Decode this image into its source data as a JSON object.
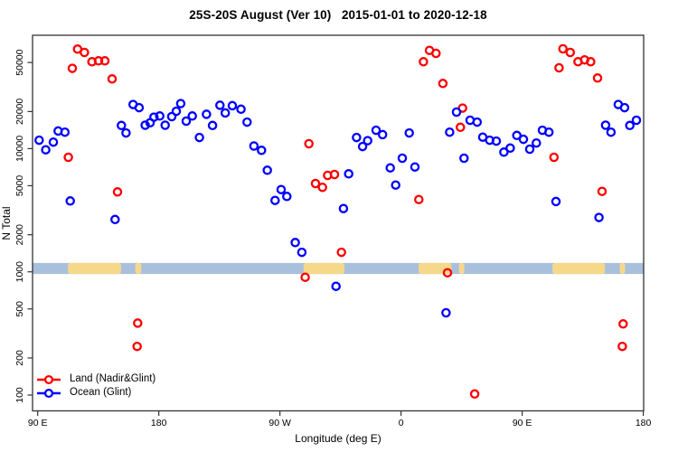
{
  "title": "25S-20S August (Ver 10)   2015-01-01 to 2020-12-18",
  "colors": {
    "land_marker": "#ff0000",
    "ocean_marker": "#0000ff",
    "map_ocean_strip": "#a9c0dd",
    "map_land_strip": "#f6d88a",
    "axis": "#333333"
  },
  "chart_data": {
    "type": "scatter",
    "title": "25S-20S August (Ver 10)   2015-01-01 to 2020-12-18",
    "xlabel": "Longitude (deg E)",
    "ylabel": "N Total",
    "y_scale": "log10",
    "ylim": [
      74,
      83000
    ],
    "x_axis_note": "x = degrees along axis starting at 90E heading east (90E>180>90W>0>90E>180), range 0-450",
    "x_ticks": [
      {
        "pos": 0,
        "label": "90 E"
      },
      {
        "pos": 90,
        "label": "180"
      },
      {
        "pos": 180,
        "label": "90 W"
      },
      {
        "pos": 270,
        "label": "0"
      },
      {
        "pos": 360,
        "label": "90 E"
      },
      {
        "pos": 450,
        "label": "180"
      }
    ],
    "y_ticks": [
      100,
      200,
      500,
      1000,
      2000,
      5000,
      10000,
      20000,
      50000
    ],
    "map_strip": {
      "description": "world-map band drawn across the plot near N=1000: ocean blue with land segments",
      "n_range": [
        960,
        1180
      ],
      "land_segments_pos": [
        [
          22.5,
          62
        ],
        [
          72.5,
          77
        ],
        [
          197.5,
          228
        ],
        [
          283,
          307.5
        ],
        [
          313,
          317
        ],
        [
          382.5,
          421.5
        ],
        [
          432.5,
          436.5
        ]
      ]
    },
    "series": [
      {
        "name": "Land (Nadir&Glint)",
        "color": "#ff0000",
        "points": [
          [
            29.6,
            64200
          ],
          [
            34.7,
            60300
          ],
          [
            40.3,
            50700
          ],
          [
            45.2,
            51600
          ],
          [
            49.9,
            51600
          ],
          [
            25.7,
            44800
          ],
          [
            55.3,
            36800
          ],
          [
            22.8,
            8500
          ],
          [
            59.3,
            4450
          ],
          [
            74.3,
            384
          ],
          [
            73.9,
            248
          ],
          [
            201.5,
            10960
          ],
          [
            215.4,
            6060
          ],
          [
            220.5,
            6170
          ],
          [
            206.4,
            5210
          ],
          [
            211.6,
            4850
          ],
          [
            283.2,
            3860
          ],
          [
            225.7,
            1440
          ],
          [
            198.8,
            904
          ],
          [
            291.1,
            62700
          ],
          [
            296.0,
            59300
          ],
          [
            286.6,
            50700
          ],
          [
            301.1,
            33800
          ],
          [
            315.7,
            21300
          ],
          [
            314.1,
            14900
          ],
          [
            304.5,
            983
          ],
          [
            390.3,
            64600
          ],
          [
            395.7,
            60300
          ],
          [
            401.5,
            50700
          ],
          [
            406.4,
            52500
          ],
          [
            410.9,
            50700
          ],
          [
            387.4,
            45300
          ],
          [
            416.0,
            37400
          ],
          [
            383.6,
            8500
          ],
          [
            419.4,
            4500
          ],
          [
            435.0,
            378
          ],
          [
            434.4,
            248
          ],
          [
            324.7,
            102
          ]
        ]
      },
      {
        "name": "Ocean (Glint)",
        "color": "#0000ff",
        "points": [
          [
            1.1,
            11700
          ],
          [
            6.0,
            9780
          ],
          [
            11.6,
            11300
          ],
          [
            15.2,
            13900
          ],
          [
            20.2,
            13600
          ],
          [
            24.2,
            3760
          ],
          [
            57.5,
            2660
          ],
          [
            62.2,
            15400
          ],
          [
            65.6,
            13400
          ],
          [
            70.9,
            22800
          ],
          [
            75.4,
            21500
          ],
          [
            79.9,
            15500
          ],
          [
            83.5,
            16200
          ],
          [
            86.4,
            18000
          ],
          [
            90.7,
            18400
          ],
          [
            94.7,
            15500
          ],
          [
            99.6,
            18200
          ],
          [
            103.0,
            20100
          ],
          [
            106.3,
            23200
          ],
          [
            110.4,
            16700
          ],
          [
            114.9,
            18400
          ],
          [
            120.2,
            12300
          ],
          [
            125.4,
            19000
          ],
          [
            129.9,
            15400
          ],
          [
            135.4,
            22500
          ],
          [
            139.4,
            19500
          ],
          [
            144.6,
            22300
          ],
          [
            151.1,
            20900
          ],
          [
            155.6,
            16400
          ],
          [
            160.7,
            10500
          ],
          [
            166.3,
            9690
          ],
          [
            170.6,
            6680
          ],
          [
            176.4,
            3800
          ],
          [
            180.9,
            4650
          ],
          [
            185.1,
            4090
          ],
          [
            191.4,
            1730
          ],
          [
            196.3,
            1440
          ],
          [
            221.7,
            763
          ],
          [
            227.2,
            3260
          ],
          [
            231.1,
            6240
          ],
          [
            236.9,
            12300
          ],
          [
            241.4,
            10400
          ],
          [
            245.2,
            11600
          ],
          [
            251.4,
            14100
          ],
          [
            256.3,
            13000
          ],
          [
            262.0,
            6980
          ],
          [
            266.0,
            5060
          ],
          [
            270.9,
            8360
          ],
          [
            276.1,
            13400
          ],
          [
            280.3,
            7100
          ],
          [
            303.4,
            465
          ],
          [
            306.1,
            13600
          ],
          [
            311.2,
            19800
          ],
          [
            316.8,
            8360
          ],
          [
            321.3,
            17000
          ],
          [
            326.5,
            16400
          ],
          [
            330.7,
            12400
          ],
          [
            335.9,
            11700
          ],
          [
            340.8,
            11500
          ],
          [
            346.4,
            9360
          ],
          [
            351.1,
            10100
          ],
          [
            356.0,
            12800
          ],
          [
            360.9,
            11900
          ],
          [
            365.6,
            9900
          ],
          [
            370.5,
            11100
          ],
          [
            375.0,
            14100
          ],
          [
            379.9,
            13600
          ],
          [
            385.1,
            3720
          ],
          [
            417.1,
            2760
          ],
          [
            422.0,
            15500
          ],
          [
            426.0,
            13600
          ],
          [
            431.4,
            22800
          ],
          [
            436.1,
            21500
          ],
          [
            440.0,
            15400
          ],
          [
            444.9,
            17000
          ]
        ]
      }
    ]
  }
}
